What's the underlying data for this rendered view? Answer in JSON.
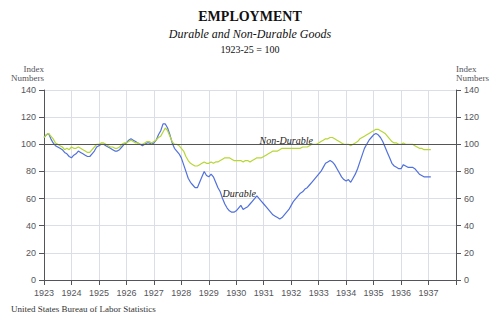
{
  "chart_data": {
    "type": "line",
    "title": "EMPLOYMENT",
    "subtitle": "Durable and Non-Durable Goods",
    "note": "1923-25 = 100",
    "source": "United States Bureau of Labor Statistics",
    "ylabel": "Index\nNumbers",
    "y2label": "Index\nNumbers",
    "x": [
      1923,
      1923.083333,
      1923.166667,
      1923.25,
      1923.333333,
      1923.416667,
      1923.5,
      1923.583333,
      1923.666667,
      1923.75,
      1923.833333,
      1923.916667,
      1924,
      1924.083333,
      1924.166667,
      1924.25,
      1924.333333,
      1924.416667,
      1924.5,
      1924.583333,
      1924.666667,
      1924.75,
      1924.833333,
      1924.916667,
      1925,
      1925.083333,
      1925.166667,
      1925.25,
      1925.333333,
      1925.416667,
      1925.5,
      1925.583333,
      1925.666667,
      1925.75,
      1925.833333,
      1925.916667,
      1926,
      1926.083333,
      1926.166667,
      1926.25,
      1926.333333,
      1926.416667,
      1926.5,
      1926.583333,
      1926.666667,
      1926.75,
      1926.833333,
      1926.916667,
      1927,
      1927.083333,
      1927.166667,
      1927.25,
      1927.333333,
      1927.416667,
      1927.5,
      1927.583333,
      1927.666667,
      1927.75,
      1927.833333,
      1927.916667,
      1928,
      1928.083333,
      1928.166667,
      1928.25,
      1928.333333,
      1928.416667,
      1928.5,
      1928.583333,
      1928.666667,
      1928.75,
      1928.833333,
      1928.916667,
      1929,
      1929.083333,
      1929.166667,
      1929.25,
      1929.333333,
      1929.416667,
      1929.5,
      1929.583333,
      1929.666667,
      1929.75,
      1929.833333,
      1929.916667,
      1930,
      1930.083333,
      1930.166667,
      1930.25,
      1930.333333,
      1930.416667,
      1930.5,
      1930.583333,
      1930.666667,
      1930.75,
      1930.833333,
      1930.916667,
      1931,
      1931.083333,
      1931.166667,
      1931.25,
      1931.333333,
      1931.416667,
      1931.5,
      1931.583333,
      1931.666667,
      1931.75,
      1931.833333,
      1931.916667,
      1932,
      1932.083333,
      1932.166667,
      1932.25,
      1932.333333,
      1932.416667,
      1932.5,
      1932.583333,
      1932.666667,
      1932.75,
      1932.833333,
      1932.916667,
      1933,
      1933.083333,
      1933.166667,
      1933.25,
      1933.333333,
      1933.416667,
      1933.5,
      1933.583333,
      1933.666667,
      1933.75,
      1933.833333,
      1933.916667,
      1934,
      1934.083333,
      1934.166667,
      1934.25,
      1934.333333,
      1934.416667,
      1934.5,
      1934.583333,
      1934.666667,
      1934.75,
      1934.833333,
      1934.916667,
      1935,
      1935.083333,
      1935.166667,
      1935.25,
      1935.333333,
      1935.416667,
      1935.5,
      1935.583333,
      1935.666667,
      1935.75,
      1935.833333,
      1935.916667,
      1936,
      1936.083333,
      1936.166667,
      1936.25,
      1936.333333,
      1936.416667,
      1936.5,
      1936.583333,
      1936.666667,
      1936.75,
      1936.833333,
      1936.916667,
      1937,
      1937.083333
    ],
    "series": [
      {
        "name": "Durable",
        "values": [
          105,
          107,
          108,
          104,
          101,
          99,
          98,
          97,
          96,
          94,
          93,
          91,
          90,
          92,
          93,
          95,
          94,
          93,
          92,
          91,
          91,
          93,
          95,
          98,
          99,
          100,
          100,
          99,
          98,
          97,
          96,
          95,
          95,
          96,
          98,
          100,
          101,
          103,
          104,
          103,
          102,
          101,
          100,
          99,
          100,
          101,
          101,
          100,
          101,
          103,
          107,
          110,
          115,
          115,
          112,
          107,
          101,
          97,
          95,
          93,
          90,
          85,
          80,
          75,
          72,
          70,
          68,
          68,
          72,
          76,
          80,
          77,
          76,
          78,
          76,
          72,
          68,
          65,
          60,
          56,
          53,
          51,
          50,
          50,
          51,
          53,
          55,
          52,
          53,
          54,
          56,
          58,
          60,
          62,
          60,
          58,
          56,
          54,
          52,
          50,
          48,
          47,
          46,
          45,
          46,
          48,
          50,
          52,
          55,
          58,
          60,
          62,
          64,
          65,
          67,
          68,
          70,
          72,
          74,
          76,
          78,
          80,
          83,
          86,
          87,
          88,
          87,
          85,
          82,
          79,
          76,
          74,
          73,
          74,
          72,
          75,
          78,
          82,
          87,
          92,
          97,
          100,
          103,
          105,
          107,
          108,
          107,
          105,
          102,
          98,
          94,
          90,
          86,
          84,
          83,
          82,
          82,
          85,
          84,
          83,
          83,
          83,
          82,
          80,
          78,
          77,
          76,
          76,
          76,
          76
        ]
      },
      {
        "name": "Non-Durable",
        "values": [
          105,
          107,
          108,
          106,
          104,
          101,
          100,
          99,
          98,
          96,
          97,
          96,
          98,
          97,
          97,
          98,
          97,
          96,
          95,
          94,
          94,
          96,
          98,
          100,
          100,
          101,
          101,
          100,
          99,
          98,
          98,
          97,
          97,
          98,
          100,
          101,
          101,
          102,
          103,
          102,
          101,
          101,
          100,
          100,
          101,
          102,
          102,
          101,
          102,
          103,
          105,
          106,
          109,
          112,
          110,
          106,
          102,
          100,
          100,
          99,
          97,
          95,
          91,
          88,
          86,
          85,
          84,
          84,
          85,
          86,
          87,
          86,
          86,
          87,
          86,
          87,
          87,
          88,
          89,
          90,
          90,
          90,
          89,
          88,
          88,
          88,
          88,
          87,
          88,
          88,
          87,
          88,
          89,
          90,
          90,
          90,
          91,
          92,
          93,
          94,
          95,
          95,
          95,
          96,
          97,
          97,
          97,
          97,
          97,
          97,
          97,
          97,
          97,
          98,
          98,
          98,
          99,
          100,
          100,
          100,
          101,
          102,
          103,
          104,
          104,
          105,
          105,
          104,
          103,
          102,
          101,
          100,
          100,
          100,
          99,
          100,
          101,
          102,
          104,
          105,
          106,
          107,
          108,
          109,
          110,
          111,
          111,
          110,
          109,
          108,
          106,
          104,
          102,
          101,
          101,
          100,
          100,
          101,
          100,
          100,
          100,
          100,
          99,
          98,
          97,
          97,
          96,
          96,
          96,
          96
        ]
      }
    ],
    "annotations": [
      {
        "text": "Non-Durable",
        "x": 1930.85,
        "y": 102.5
      },
      {
        "text": "Durable",
        "x": 1929.5,
        "y": 64
      }
    ],
    "hline": 100,
    "xlim": [
      1923,
      1938
    ],
    "xticks": [
      1923,
      1924,
      1925,
      1926,
      1927,
      1928,
      1929,
      1930,
      1931,
      1932,
      1933,
      1934,
      1935,
      1936,
      1937
    ],
    "ylim": [
      0,
      140
    ],
    "yticks": [
      0,
      20,
      40,
      60,
      80,
      100,
      120,
      140
    ],
    "y2lim": [
      0,
      140
    ],
    "y2ticks": [
      0,
      20,
      40,
      60,
      80,
      100,
      120,
      140
    ],
    "grid": true,
    "legend": false
  }
}
